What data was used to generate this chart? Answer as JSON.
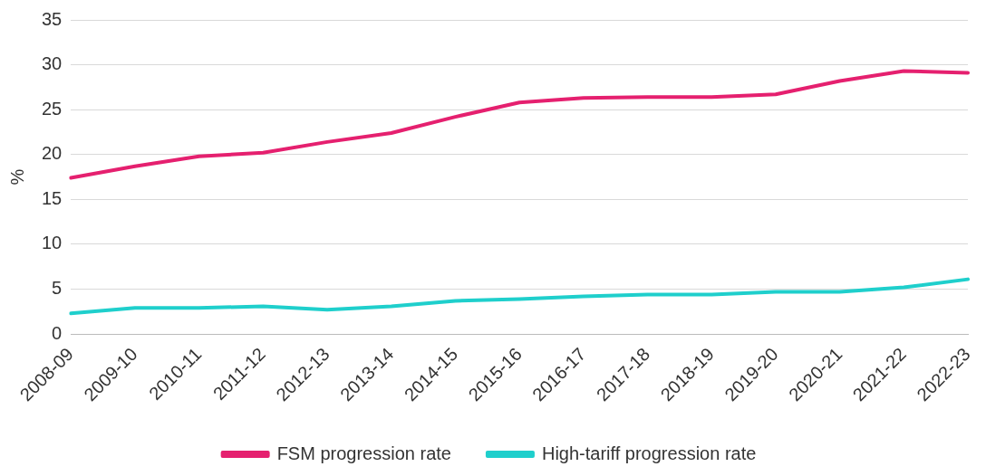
{
  "chart_data": {
    "type": "line",
    "ylabel": "%",
    "categories": [
      "2008-09",
      "2009-10",
      "2010-11",
      "2011-12",
      "2012-13",
      "2013-14",
      "2014-15",
      "2015-16",
      "2016-17",
      "2017-18",
      "2018-19",
      "2019-20",
      "2020-21",
      "2021-22",
      "2022-23"
    ],
    "series": [
      {
        "name": "FSM progression rate",
        "color": "#e5206f",
        "values": [
          17.4,
          18.7,
          19.8,
          20.2,
          21.4,
          22.4,
          24.2,
          25.8,
          26.3,
          26.4,
          26.4,
          26.7,
          28.2,
          29.3,
          29.1
        ]
      },
      {
        "name": "High-tariff progression rate",
        "color": "#1fcfcc",
        "values": [
          2.3,
          2.9,
          2.9,
          3.1,
          2.7,
          3.1,
          3.7,
          3.9,
          4.2,
          4.4,
          4.4,
          4.7,
          4.7,
          5.2,
          6.1
        ]
      }
    ],
    "ylim": [
      0,
      35
    ],
    "yticks": [
      0,
      5,
      10,
      15,
      20,
      25,
      30,
      35
    ],
    "grid": "y",
    "legend": "bottom",
    "marker": "none",
    "line_style": "solid"
  }
}
